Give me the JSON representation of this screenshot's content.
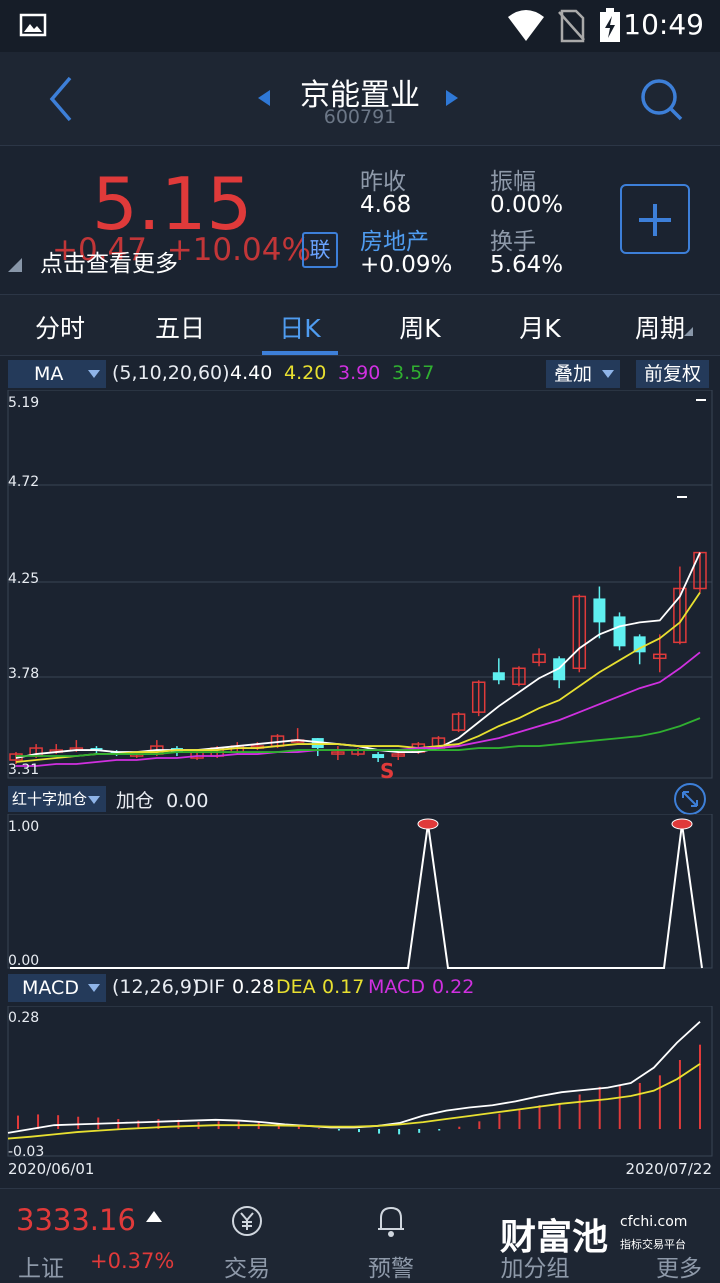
{
  "status": {
    "time": "10:49"
  },
  "header": {
    "title": "京能置业",
    "code": "600791"
  },
  "quote": {
    "price": "5.15",
    "change": "+0.47",
    "change_pct": "+10.04%",
    "tip": "点击查看更多",
    "lian": "联",
    "prev_close_label": "昨收",
    "prev_close": "4.68",
    "amplitude_label": "振幅",
    "amplitude": "0.00%",
    "sector_label": "房地产",
    "sector_change": "+0.09%",
    "turnover_label": "换手",
    "turnover": "5.64%"
  },
  "tabs": [
    {
      "label": "分时"
    },
    {
      "label": "五日"
    },
    {
      "label": "日K"
    },
    {
      "label": "周K"
    },
    {
      "label": "月K"
    },
    {
      "label": "周期"
    }
  ],
  "ma": {
    "select": "MA",
    "params": "(5,10,20,60)",
    "v5": "4.40",
    "v10": "4.20",
    "v20": "3.90",
    "v60": "3.57",
    "overlay": "叠加",
    "adjust": "前复权"
  },
  "kline_axis": [
    "5.19",
    "4.72",
    "4.25",
    "3.78",
    "3.31"
  ],
  "sub_indicator": {
    "select": "红十字加仓",
    "label": "加仓",
    "value": "0.00",
    "y_top": "1.00",
    "y_bottom": "0.00"
  },
  "macd": {
    "select": "MACD",
    "params": "(12,26,9)",
    "dif_label": "DIF",
    "dif": "0.28",
    "dea_label": "DEA",
    "dea": "0.17",
    "macd_label": "MACD",
    "macd": "0.22",
    "y_top": "0.28",
    "y_bottom": "-0.03"
  },
  "dates": {
    "start": "2020/06/01",
    "end": "2020/07/22"
  },
  "signal": "S",
  "bottom": {
    "index_value": "3333.16",
    "index_name": "上证",
    "index_pct": "+0.37%",
    "nav": [
      {
        "label": "交易",
        "icon": "yuan-exchange-icon"
      },
      {
        "label": "预警",
        "icon": "bell-icon"
      },
      {
        "label": "加分组",
        "icon": "group-icon"
      },
      {
        "label": "更多",
        "icon": "more-icon"
      }
    ],
    "watermark": "财富池",
    "watermark_site": "cfchi.com",
    "watermark_sub": "指标交易平台"
  },
  "colors": {
    "up": "#e03a3a",
    "down": "#5ff0f0",
    "ma5": "#ffffff",
    "ma10": "#e8e030",
    "ma20": "#d030e0",
    "ma60": "#30b030",
    "accent": "#3d7fd8"
  }
}
